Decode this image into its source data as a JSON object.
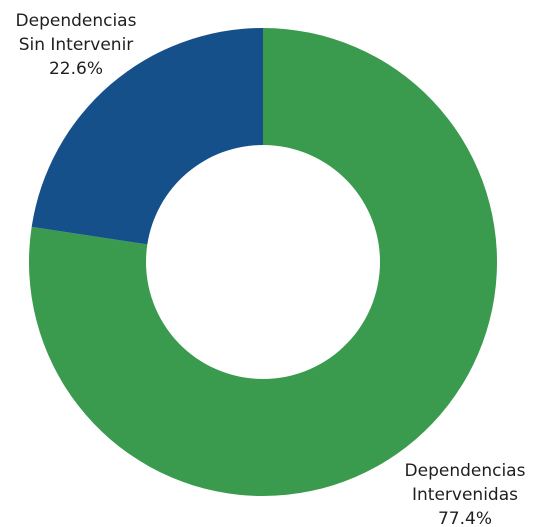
{
  "chart_data": {
    "type": "pie",
    "style": "donut",
    "categories": [
      "Dependencias Intervenidas",
      "Dependencias Sin Intervenir"
    ],
    "values": [
      77.4,
      22.6
    ],
    "unit": "%",
    "colors": [
      "#3a9b4e",
      "#15508a"
    ],
    "labels": [
      {
        "lines": [
          "Dependencias",
          "Intervenidas",
          "77.4%"
        ]
      },
      {
        "lines": [
          "Dependencias",
          "Sin Intervenir",
          "22.6%"
        ]
      }
    ],
    "legend": false
  }
}
